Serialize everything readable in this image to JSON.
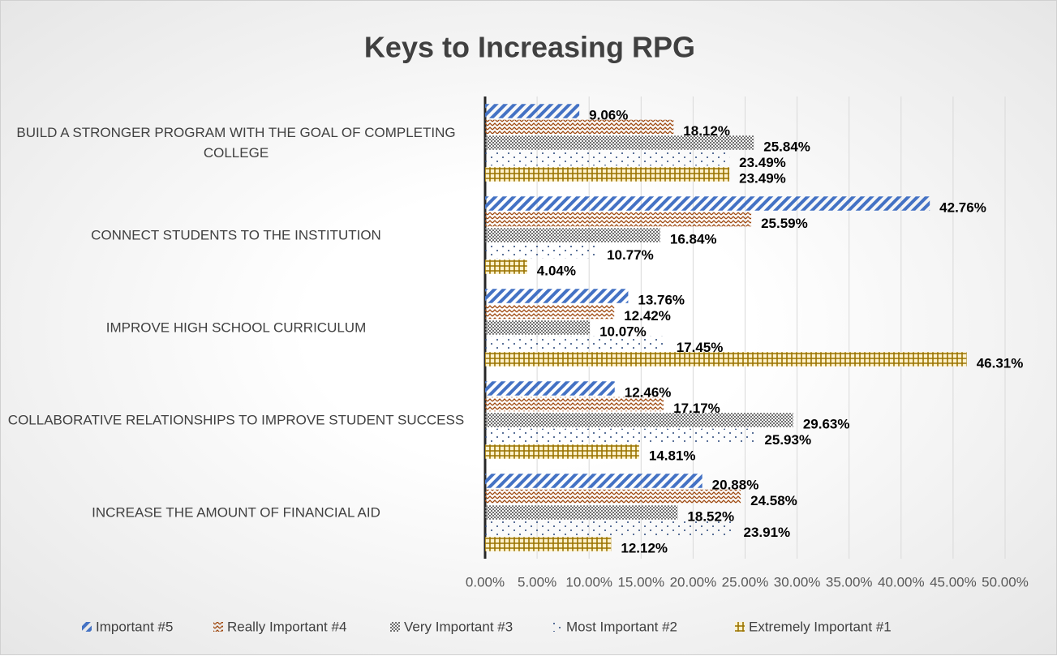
{
  "chart_data": {
    "type": "bar",
    "orientation": "horizontal",
    "title": "Keys to Increasing RPG",
    "categories": [
      "BUILD A STRONGER PROGRAM WITH THE GOAL OF COMPLETING COLLEGE",
      "CONNECT STUDENTS TO THE INSTITUTION",
      "IMPROVE HIGH SCHOOL CURRICULUM",
      "COLLABORATIVE RELATIONSHIPS TO IMPROVE STUDENT SUCCESS",
      "INCREASE THE AMOUNT OF FINANCIAL AID"
    ],
    "series": [
      {
        "name": "Important #5",
        "color": "#4472c4",
        "values": [
          9.06,
          42.76,
          13.76,
          12.46,
          20.88
        ],
        "value_labels": [
          "9.06%",
          "42.76%",
          "13.76%",
          "12.46%",
          "20.88%"
        ]
      },
      {
        "name": "Really Important #4",
        "color": "#9e480e",
        "values": [
          18.12,
          25.59,
          12.42,
          17.17,
          24.58
        ],
        "value_labels": [
          "18.12%",
          "25.59%",
          "12.42%",
          "17.17%",
          "24.58%"
        ]
      },
      {
        "name": "Very Important #3",
        "color": "#6f6f6f",
        "values": [
          25.84,
          16.84,
          10.07,
          29.63,
          18.52
        ],
        "value_labels": [
          "25.84%",
          "16.84%",
          "10.07%",
          "29.63%",
          "18.52%"
        ]
      },
      {
        "name": "Most Important #2",
        "color": "#264478",
        "values": [
          23.49,
          10.77,
          17.45,
          25.93,
          23.91
        ],
        "value_labels": [
          "23.49%",
          "10.77%",
          "17.45%",
          "25.93%",
          "23.91%"
        ]
      },
      {
        "name": "Extremely Important #1",
        "color": "#997300",
        "values": [
          23.49,
          4.04,
          46.31,
          14.81,
          12.12
        ],
        "value_labels": [
          "23.49%",
          "4.04%",
          "46.31%",
          "14.81%",
          "12.12%"
        ]
      }
    ],
    "xlim": [
      0,
      50
    ],
    "xticks": [
      {
        "value": 0,
        "label": "0.00%"
      },
      {
        "value": 5,
        "label": "5.00%"
      },
      {
        "value": 10,
        "label": "10.00%"
      },
      {
        "value": 15,
        "label": "15.00%"
      },
      {
        "value": 20,
        "label": "20.00%"
      },
      {
        "value": 25,
        "label": "25.00%"
      },
      {
        "value": 30,
        "label": "30.00%"
      },
      {
        "value": 35,
        "label": "35.00%"
      },
      {
        "value": 40,
        "label": "40.00%"
      },
      {
        "value": 45,
        "label": "45.00%"
      },
      {
        "value": 50,
        "label": "50.00%"
      }
    ],
    "grid": true,
    "legend": "bottom"
  }
}
